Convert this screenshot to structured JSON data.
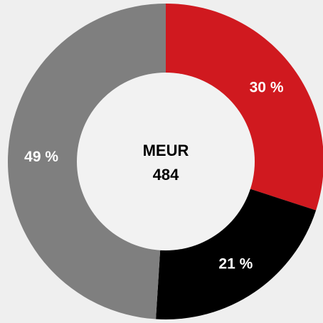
{
  "chart_data": {
    "type": "donut",
    "categories": [
      null,
      null,
      null
    ],
    "values": [
      30,
      21,
      49
    ],
    "value_labels": [
      "30 %",
      "21 %",
      "49 %"
    ],
    "colors": [
      "#d0191f",
      "#000000",
      "#7f7f7f"
    ],
    "center_title": "MEUR",
    "center_value": "484"
  }
}
